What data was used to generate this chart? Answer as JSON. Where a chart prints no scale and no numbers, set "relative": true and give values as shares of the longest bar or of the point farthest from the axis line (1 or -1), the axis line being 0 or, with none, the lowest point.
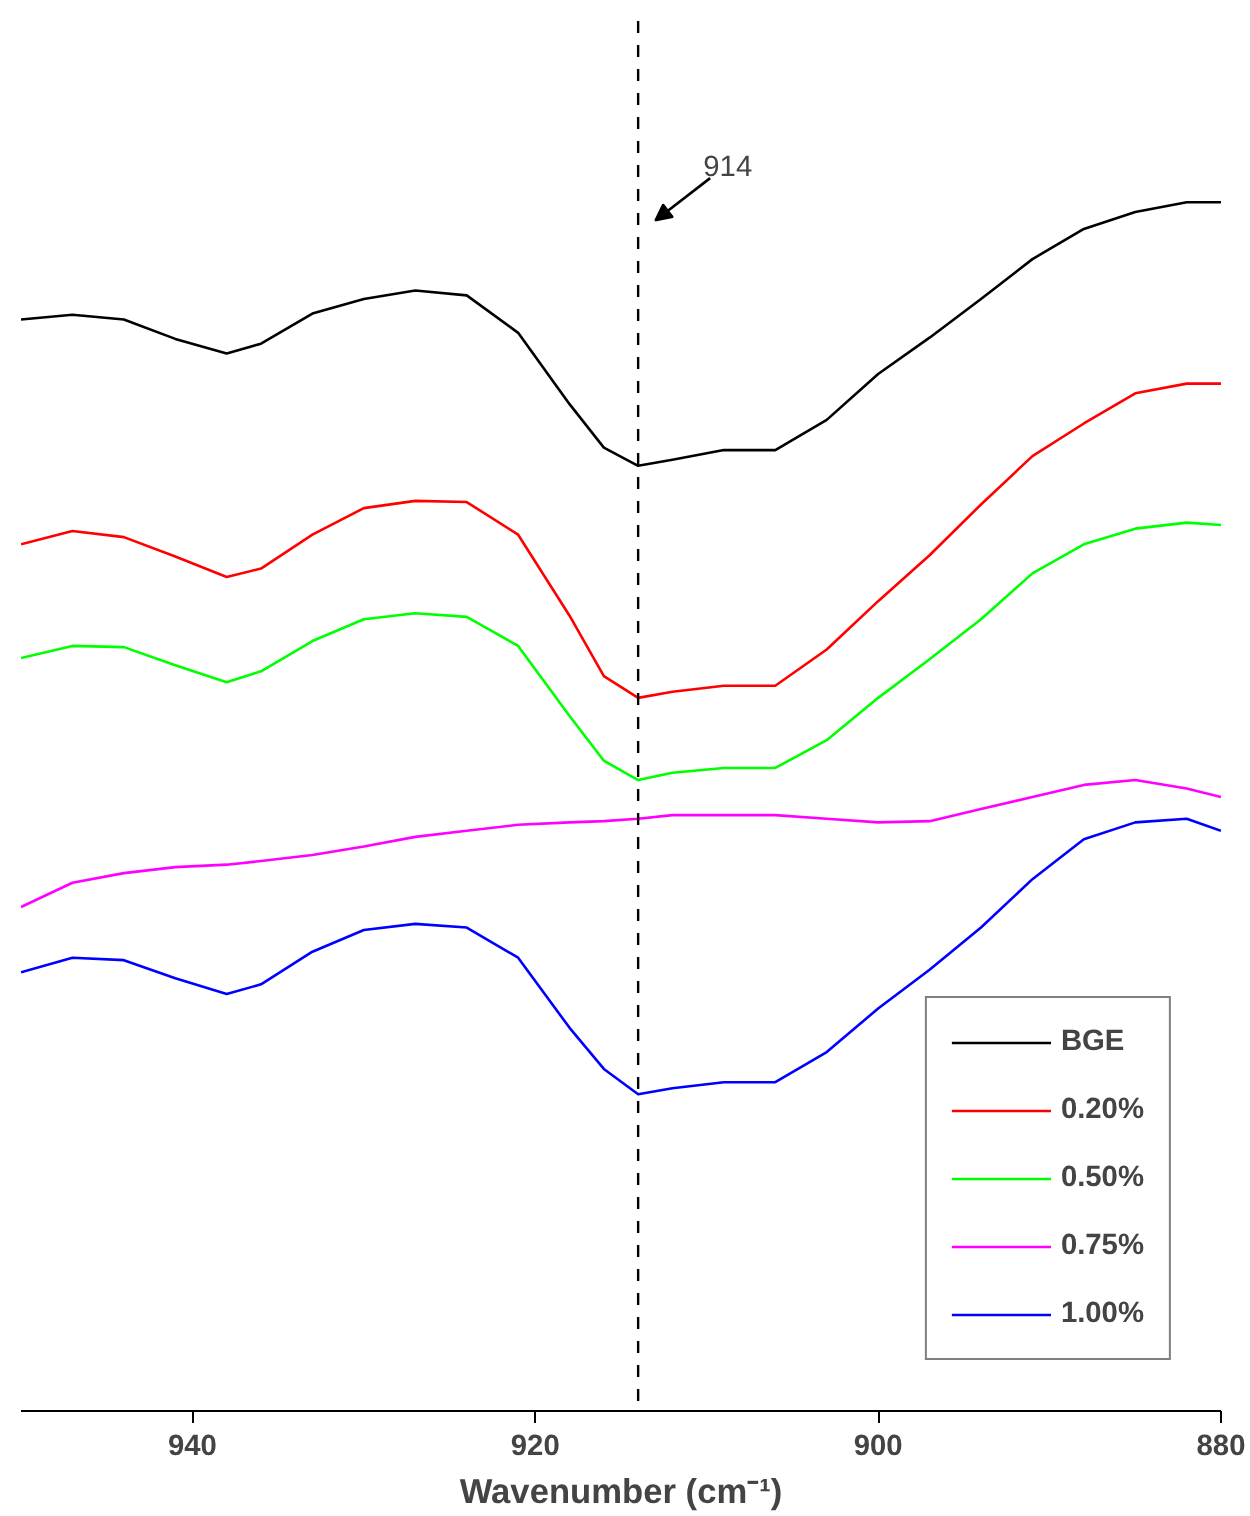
{
  "chart_data": {
    "type": "line",
    "relative": true,
    "xlabel": "Wavenumber (cm⁻¹)",
    "xlim": [
      950,
      880
    ],
    "xticks": [
      940,
      920,
      900,
      880
    ],
    "tick_labels": "x",
    "grid": false,
    "legend": "bottom right",
    "line_style": "solid",
    "x": [
      950,
      947,
      944,
      941,
      938,
      936,
      933,
      930,
      927,
      924,
      921,
      918,
      916,
      914,
      912,
      909,
      906,
      903,
      900,
      897,
      894,
      891,
      888,
      885,
      882,
      880
    ],
    "series": [
      {
        "name": "BGE",
        "color": "#000000",
        "values": [
          0.903,
          0.907,
          0.903,
          0.887,
          0.875,
          0.883,
          0.908,
          0.92,
          0.927,
          0.923,
          0.892,
          0.833,
          0.797,
          0.782,
          0.787,
          0.795,
          0.795,
          0.82,
          0.858,
          0.888,
          0.92,
          0.953,
          0.978,
          0.992,
          1,
          1
        ]
      },
      {
        "name": "0.20%",
        "color": "#ff0000",
        "values": [
          0.717,
          0.728,
          0.723,
          0.707,
          0.69,
          0.697,
          0.725,
          0.747,
          0.753,
          0.752,
          0.725,
          0.658,
          0.608,
          0.59,
          0.595,
          0.6,
          0.6,
          0.63,
          0.67,
          0.708,
          0.75,
          0.79,
          0.817,
          0.842,
          0.85,
          0.85
        ]
      },
      {
        "name": "0.50%",
        "color": "#00ff00",
        "values": [
          0.623,
          0.633,
          0.632,
          0.617,
          0.603,
          0.612,
          0.637,
          0.655,
          0.66,
          0.657,
          0.633,
          0.575,
          0.538,
          0.522,
          0.528,
          0.532,
          0.532,
          0.555,
          0.59,
          0.622,
          0.655,
          0.693,
          0.717,
          0.73,
          0.735,
          0.733
        ]
      },
      {
        "name": "0.75%",
        "color": "#ff00ff",
        "values": [
          0.417,
          0.437,
          0.445,
          0.45,
          0.452,
          0.455,
          0.46,
          0.467,
          0.475,
          0.48,
          0.485,
          0.487,
          0.488,
          0.49,
          0.493,
          0.493,
          0.493,
          0.49,
          0.487,
          0.488,
          0.498,
          0.508,
          0.518,
          0.522,
          0.515,
          0.508
        ]
      },
      {
        "name": "1.00%",
        "color": "#0000ff",
        "values": [
          0.363,
          0.375,
          0.373,
          0.358,
          0.345,
          0.353,
          0.38,
          0.398,
          0.403,
          0.4,
          0.375,
          0.317,
          0.283,
          0.262,
          0.267,
          0.272,
          0.272,
          0.297,
          0.333,
          0.365,
          0.4,
          0.44,
          0.473,
          0.487,
          0.49,
          0.48
        ]
      }
    ],
    "ref_lines": [
      {
        "axis": "x",
        "value": 914,
        "label": "914",
        "color": "#000000",
        "line_style": "dashed"
      }
    ]
  }
}
